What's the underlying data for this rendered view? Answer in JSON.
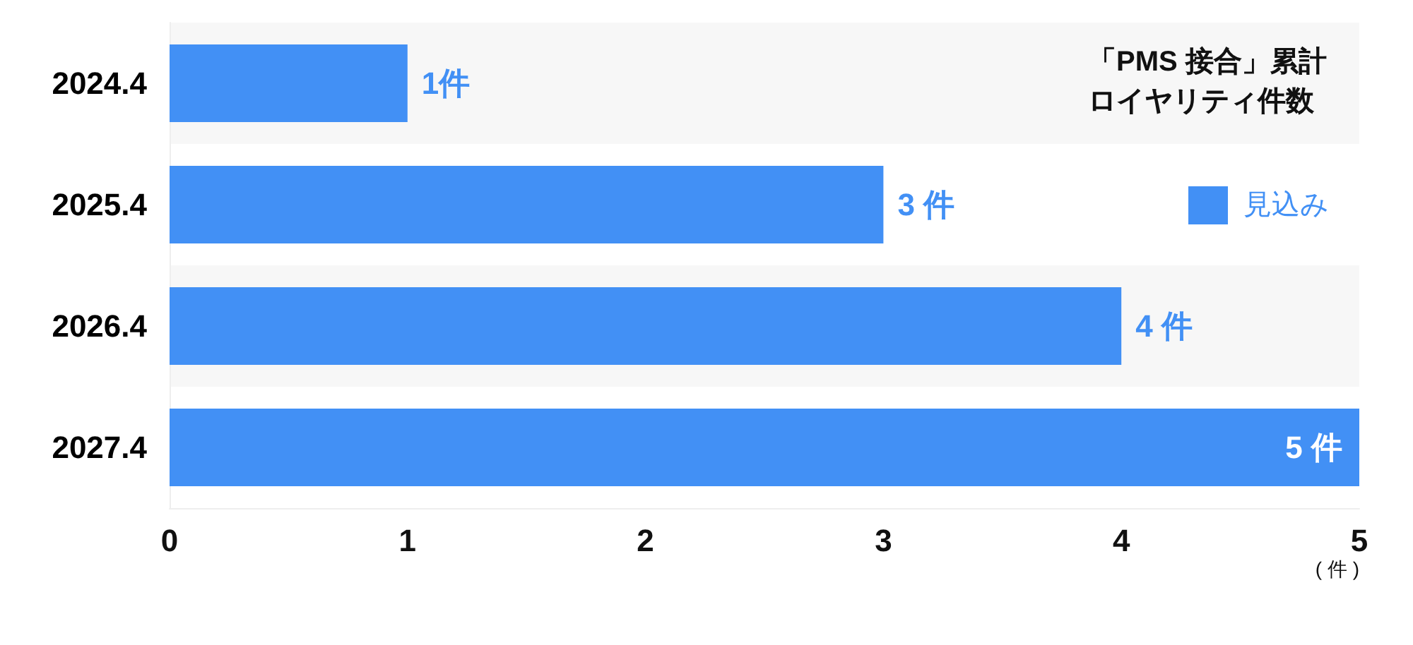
{
  "chart_data": {
    "type": "bar",
    "orientation": "horizontal",
    "title": "「PMS 接合」累計ロイヤリティ件数",
    "xlabel": "( 件 )",
    "categories": [
      "2024.4",
      "2025.4",
      "2026.4",
      "2027.4"
    ],
    "series": [
      {
        "name": "見込み",
        "color": "#4290f5",
        "values": [
          1,
          3,
          4,
          5
        ],
        "value_labels": [
          "1件",
          "3 件",
          "4 件",
          "5 件"
        ]
      }
    ],
    "xlim": [
      0,
      5
    ],
    "xticks": [
      0,
      1,
      2,
      3,
      4,
      5
    ],
    "legend": "top right",
    "bands": [
      {
        "axis": "y",
        "from": "2024.4",
        "to": "2024.4",
        "color": "#f7f7f7"
      },
      {
        "axis": "y",
        "from": "2026.4",
        "to": "2026.4",
        "color": "#f7f7f7"
      }
    ]
  }
}
